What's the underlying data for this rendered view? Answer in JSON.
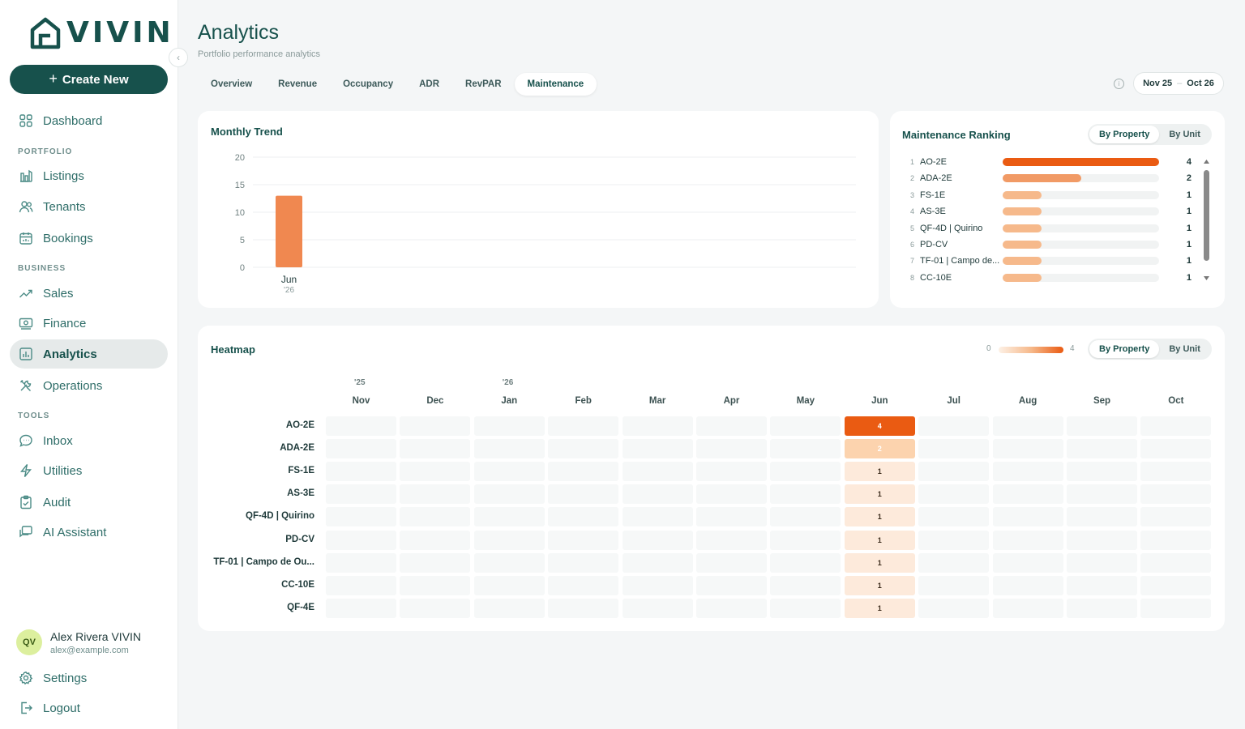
{
  "app": {
    "logo_text": "VIVIN"
  },
  "sidebar": {
    "create_label": "Create New",
    "dashboard": "Dashboard",
    "sections": {
      "portfolio": "PORTFOLIO",
      "business": "BUSINESS",
      "tools": "TOOLS"
    },
    "items": {
      "listings": "Listings",
      "tenants": "Tenants",
      "bookings": "Bookings",
      "sales": "Sales",
      "finance": "Finance",
      "analytics": "Analytics",
      "operations": "Operations",
      "inbox": "Inbox",
      "utilities": "Utilities",
      "audit": "Audit",
      "ai_assistant": "AI Assistant"
    },
    "user": {
      "initials": "QV",
      "name": "Alex Rivera VIVIN",
      "email": "alex@example.com"
    },
    "settings": "Settings",
    "logout": "Logout"
  },
  "header": {
    "title": "Analytics",
    "subtitle": "Portfolio performance analytics",
    "tabs": [
      "Overview",
      "Revenue",
      "Occupancy",
      "ADR",
      "RevPAR",
      "Maintenance"
    ],
    "active_tab": "Maintenance",
    "date_from": "Nov 25",
    "date_sep": "–",
    "date_to": "Oct 26"
  },
  "trend": {
    "title": "Monthly Trend",
    "chart_data": {
      "type": "bar",
      "categories": [
        "Jun"
      ],
      "category_sublabels": [
        "'26"
      ],
      "values": [
        13
      ],
      "ylim": [
        0,
        20
      ],
      "yticks": [
        0,
        5,
        10,
        15,
        20
      ],
      "bar_color": "#f08850",
      "grid": true
    }
  },
  "ranking": {
    "title": "Maintenance Ranking",
    "toggle": [
      "By Property",
      "By Unit"
    ],
    "max": 4,
    "rows": [
      {
        "rank": "1",
        "name": "AO-2E",
        "value": 4,
        "color": "#ea5b12"
      },
      {
        "rank": "2",
        "name": "ADA-2E",
        "value": 2,
        "color": "#f19a65"
      },
      {
        "rank": "3",
        "name": "FS-1E",
        "value": 1,
        "color": "#f6b98b"
      },
      {
        "rank": "4",
        "name": "AS-3E",
        "value": 1,
        "color": "#f6b98b"
      },
      {
        "rank": "5",
        "name": "QF-4D | Quirino",
        "value": 1,
        "color": "#f6b98b"
      },
      {
        "rank": "6",
        "name": "PD-CV",
        "value": 1,
        "color": "#f6b98b"
      },
      {
        "rank": "7",
        "name": "TF-01 | Campo de...",
        "value": 1,
        "color": "#f6b98b"
      },
      {
        "rank": "8",
        "name": "CC-10E",
        "value": 1,
        "color": "#f6b98b"
      }
    ]
  },
  "heatmap": {
    "title": "Heatmap",
    "legend_min": "0",
    "legend_max": "4",
    "toggle": [
      "By Property",
      "By Unit"
    ],
    "years": [
      {
        "label": "'25",
        "col": 0
      },
      {
        "label": "'26",
        "col": 2
      }
    ],
    "months": [
      "Nov",
      "Dec",
      "Jan",
      "Feb",
      "Mar",
      "Apr",
      "May",
      "Jun",
      "Jul",
      "Aug",
      "Sep",
      "Oct"
    ],
    "rows": [
      {
        "name": "AO-2E",
        "values": [
          0,
          0,
          0,
          0,
          0,
          0,
          0,
          4,
          0,
          0,
          0,
          0
        ]
      },
      {
        "name": "ADA-2E",
        "values": [
          0,
          0,
          0,
          0,
          0,
          0,
          0,
          2,
          0,
          0,
          0,
          0
        ]
      },
      {
        "name": "FS-1E",
        "values": [
          0,
          0,
          0,
          0,
          0,
          0,
          0,
          1,
          0,
          0,
          0,
          0
        ]
      },
      {
        "name": "AS-3E",
        "values": [
          0,
          0,
          0,
          0,
          0,
          0,
          0,
          1,
          0,
          0,
          0,
          0
        ]
      },
      {
        "name": "QF-4D | Quirino",
        "values": [
          0,
          0,
          0,
          0,
          0,
          0,
          0,
          1,
          0,
          0,
          0,
          0
        ]
      },
      {
        "name": "PD-CV",
        "values": [
          0,
          0,
          0,
          0,
          0,
          0,
          0,
          1,
          0,
          0,
          0,
          0
        ]
      },
      {
        "name": "TF-01 | Campo de Ou...",
        "values": [
          0,
          0,
          0,
          0,
          0,
          0,
          0,
          1,
          0,
          0,
          0,
          0
        ]
      },
      {
        "name": "CC-10E",
        "values": [
          0,
          0,
          0,
          0,
          0,
          0,
          0,
          1,
          0,
          0,
          0,
          0
        ]
      },
      {
        "name": "QF-4E",
        "values": [
          0,
          0,
          0,
          0,
          0,
          0,
          0,
          1,
          0,
          0,
          0,
          0
        ]
      }
    ],
    "colors": {
      "4": "#ea5b12",
      "2": "#fcd3ae",
      "1": "#fdeadb"
    }
  }
}
